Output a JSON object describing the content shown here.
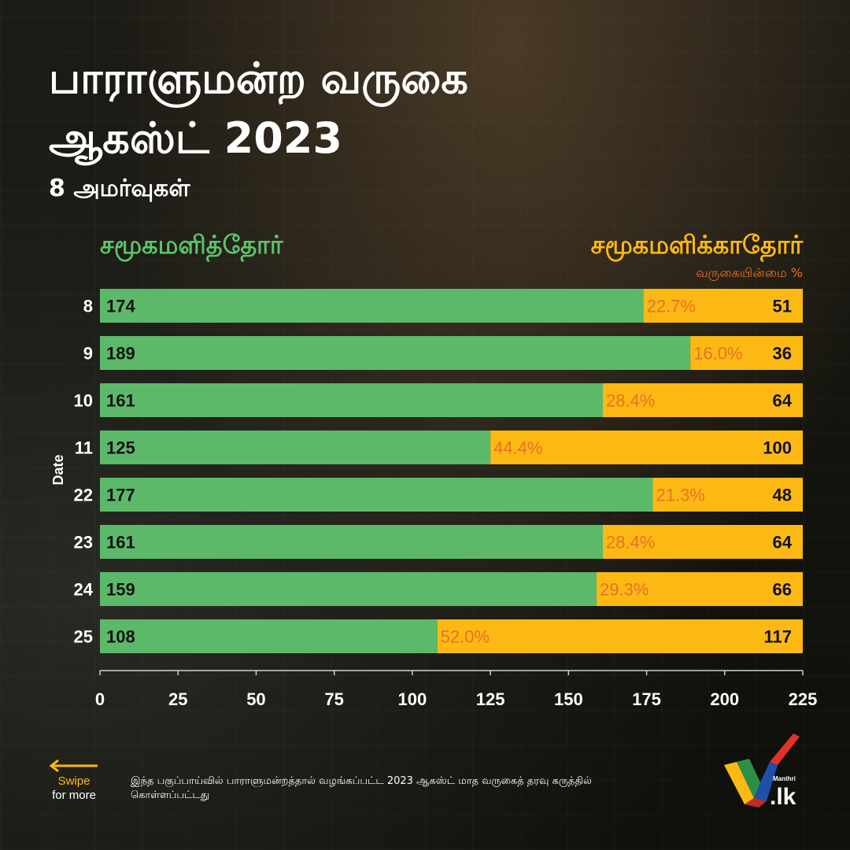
{
  "header": {
    "title_line1": "பாராளுமன்ற வருகை",
    "title_line2": "ஆகஸ்ட் 2023",
    "subtitle": "8 அமர்வுகள்"
  },
  "legend": {
    "present": "சமூகமளித்தோர்",
    "absent": "சமூகமளிக்காதோர்",
    "absent_note": "வருகையின்மை %"
  },
  "colors": {
    "present": "#5cb96a",
    "absent": "#fdb913",
    "percent_text": "#e8702a"
  },
  "chart_data": {
    "type": "bar",
    "orientation": "horizontal",
    "stacked": true,
    "categories": [
      "8",
      "9",
      "10",
      "11",
      "22",
      "23",
      "24",
      "25"
    ],
    "series": [
      {
        "name": "சமூகமளித்தோர்",
        "values": [
          174,
          189,
          161,
          125,
          177,
          161,
          159,
          108
        ]
      },
      {
        "name": "சமூகமளிக்காதோர்",
        "values": [
          51,
          36,
          64,
          100,
          48,
          64,
          66,
          117
        ]
      }
    ],
    "absence_percent": [
      "22.7%",
      "16.0%",
      "28.4%",
      "44.4%",
      "21.3%",
      "28.4%",
      "29.3%",
      "52.0%"
    ],
    "ylabel": "Date",
    "xlabel": "",
    "xlim": [
      0,
      225
    ],
    "xticks": [
      0,
      25,
      50,
      75,
      100,
      125,
      150,
      175,
      200,
      225
    ],
    "grid": false
  },
  "footer": {
    "swipe_label": "Swipe",
    "swipe_sub": "for more",
    "note": "இந்த பகுப்பாய்வில் பாராளுமன்றத்தால் வழங்கப்பட்ட 2023 ஆகஸ்ட் மாத வருகைத் தரவு கருத்தில் கொள்ளப்பட்டது",
    "logo_small": "Manthri",
    "logo_main": ".lk"
  }
}
